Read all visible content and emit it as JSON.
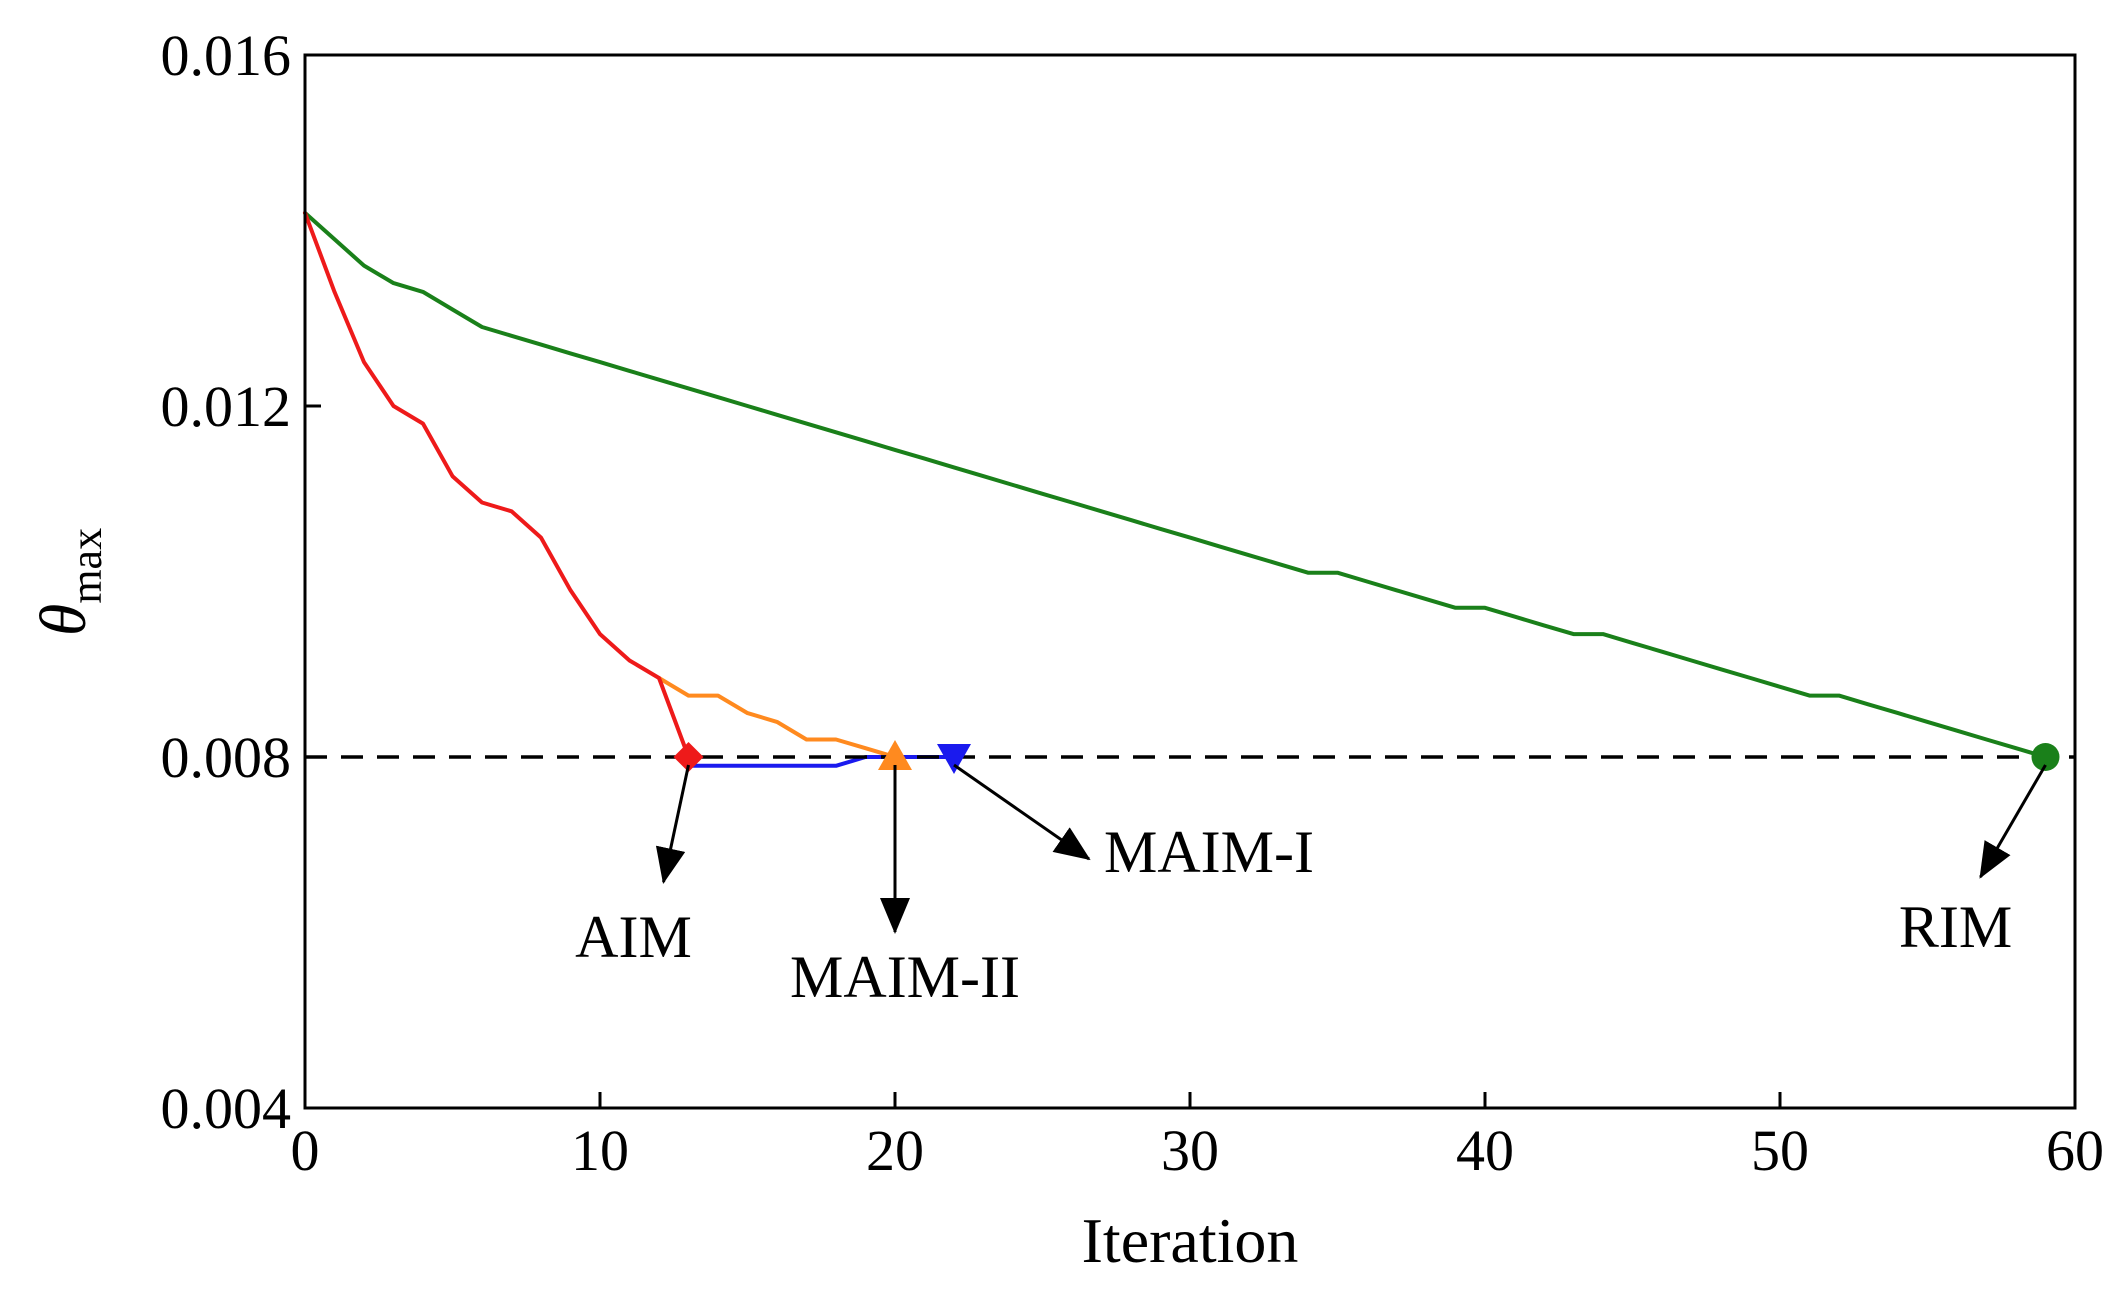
{
  "chart_data": {
    "type": "line",
    "title": "",
    "xlabel": "Iteration",
    "ylabel": {
      "symbol": "θ",
      "subscript": "max"
    },
    "xlim": [
      0,
      60
    ],
    "ylim": [
      0.004,
      0.016
    ],
    "xticks": [
      0,
      10,
      20,
      30,
      40,
      50,
      60
    ],
    "xtick_labels": [
      "0",
      "10",
      "20",
      "30",
      "40",
      "50",
      "60"
    ],
    "yticks": [
      0.004,
      0.008,
      0.012,
      0.016
    ],
    "ytick_labels": [
      "0.004",
      "0.008",
      "0.012",
      "0.016"
    ],
    "grid": false,
    "legend": "none",
    "threshold": {
      "y": 0.008,
      "style": "dashed",
      "color": "#000000"
    },
    "series": [
      {
        "id": "rim",
        "color": "#1a801a",
        "marker": "circle",
        "x": [
          0,
          1,
          2,
          3,
          4,
          5,
          6,
          7,
          8,
          9,
          10,
          11,
          12,
          13,
          14,
          15,
          16,
          17,
          18,
          19,
          20,
          21,
          22,
          23,
          24,
          25,
          26,
          27,
          28,
          29,
          30,
          31,
          32,
          33,
          34,
          35,
          36,
          37,
          38,
          39,
          40,
          41,
          42,
          43,
          44,
          45,
          46,
          47,
          48,
          49,
          50,
          51,
          52,
          53,
          54,
          55,
          56,
          57,
          58,
          59
        ],
        "values": [
          0.0142,
          0.0139,
          0.0136,
          0.0134,
          0.0133,
          0.0131,
          0.0129,
          0.0128,
          0.0127,
          0.0126,
          0.0125,
          0.0124,
          0.0123,
          0.0122,
          0.0121,
          0.012,
          0.0119,
          0.0118,
          0.0117,
          0.0116,
          0.0115,
          0.0114,
          0.0113,
          0.0112,
          0.0111,
          0.011,
          0.0109,
          0.0108,
          0.0107,
          0.0106,
          0.0105,
          0.0104,
          0.0103,
          0.0102,
          0.0101,
          0.0101,
          0.01,
          0.0099,
          0.0098,
          0.0097,
          0.0097,
          0.0096,
          0.0095,
          0.0094,
          0.0094,
          0.0093,
          0.0092,
          0.0091,
          0.009,
          0.0089,
          0.0088,
          0.0087,
          0.0087,
          0.0086,
          0.0085,
          0.0084,
          0.0083,
          0.0082,
          0.0081,
          0.008
        ]
      },
      {
        "id": "maim-ii",
        "color": "#ff8a1f",
        "marker": "triangle-up",
        "x": [
          12,
          13,
          14,
          15,
          16,
          17,
          18,
          19,
          20
        ],
        "values": [
          0.0089,
          0.0087,
          0.0087,
          0.0085,
          0.0084,
          0.0082,
          0.0082,
          0.0081,
          0.008
        ]
      },
      {
        "id": "maim-i",
        "color": "#1a1aee",
        "marker": "triangle-down",
        "x": [
          13,
          14,
          15,
          16,
          17,
          18,
          19,
          20,
          21,
          22
        ],
        "values": [
          0.0079,
          0.0079,
          0.0079,
          0.0079,
          0.0079,
          0.0079,
          0.008,
          0.008,
          0.008,
          0.008
        ]
      },
      {
        "id": "aim",
        "color": "#ee1a1a",
        "marker": "diamond",
        "x": [
          0,
          1,
          2,
          3,
          4,
          5,
          6,
          7,
          8,
          9,
          10,
          11,
          12,
          13
        ],
        "values": [
          0.0142,
          0.0133,
          0.0125,
          0.012,
          0.0118,
          0.0112,
          0.0109,
          0.0108,
          0.0105,
          0.0099,
          0.0094,
          0.0091,
          0.0089,
          0.008
        ]
      }
    ],
    "annotations": [
      {
        "text": "AIM",
        "point": [
          13,
          0.008
        ]
      },
      {
        "text": "MAIM-II",
        "point": [
          20,
          0.008
        ]
      },
      {
        "text": "MAIM-I",
        "point": [
          22,
          0.008
        ]
      },
      {
        "text": "RIM",
        "point": [
          59,
          0.008
        ]
      }
    ]
  }
}
